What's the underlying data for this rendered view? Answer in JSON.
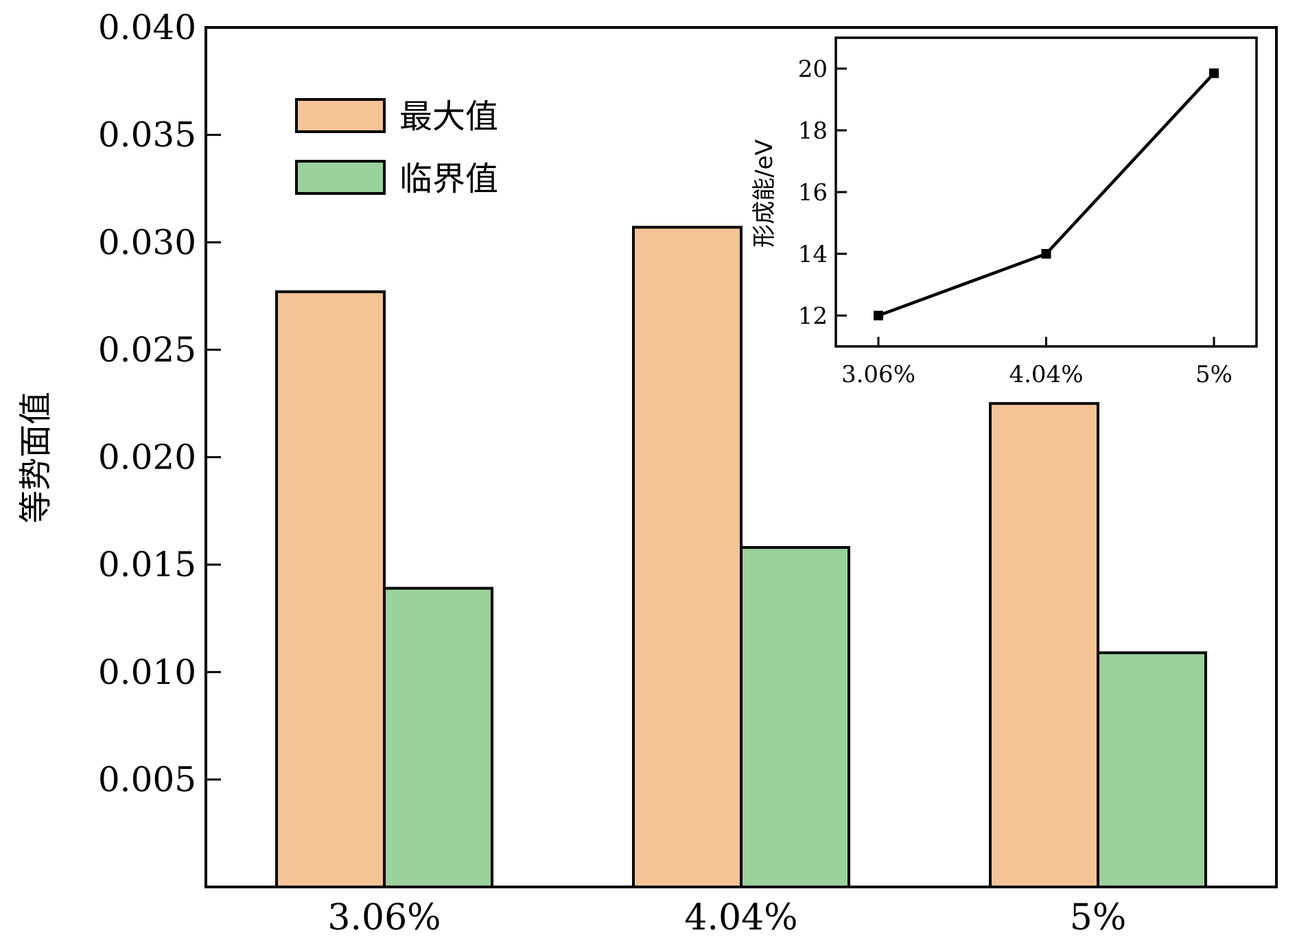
{
  "chart_data": [
    {
      "type": "bar",
      "categories": [
        "3.06%",
        "4.04%",
        "5%"
      ],
      "series": [
        {
          "name": "最大值",
          "values": [
            0.0277,
            0.0307,
            0.0225
          ],
          "color": "#F5C496"
        },
        {
          "name": "临界值",
          "values": [
            0.0139,
            0.0158,
            0.0109
          ],
          "color": "#9BD19B"
        }
      ],
      "xlabel": "",
      "ylabel": "等势面值",
      "ylim": [
        0,
        0.04
      ],
      "yticks": [
        "0.005",
        "0.010",
        "0.015",
        "0.020",
        "0.025",
        "0.030",
        "0.035",
        "0.040"
      ],
      "ytick_values": [
        0.005,
        0.01,
        0.015,
        0.02,
        0.025,
        0.03,
        0.035,
        0.04
      ],
      "legend": "top-left",
      "grid": false
    },
    {
      "type": "line",
      "categories": [
        "3.06%",
        "4.04%",
        "5%"
      ],
      "series": [
        {
          "values": [
            12.0,
            14.0,
            19.85
          ],
          "color": "#000000"
        }
      ],
      "xlabel": "",
      "ylabel": "形成能/eV",
      "ylim": [
        11.0,
        21.0
      ],
      "yticks": [
        "12",
        "14",
        "16",
        "18",
        "20"
      ],
      "ytick_values": [
        12,
        14,
        16,
        18,
        20
      ],
      "legend": "none",
      "grid": false
    }
  ]
}
